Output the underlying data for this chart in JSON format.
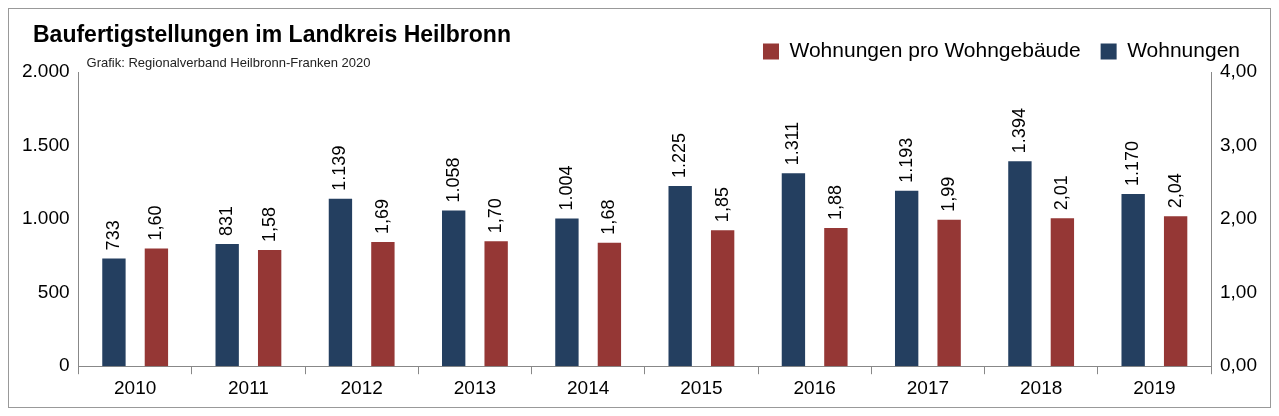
{
  "chart_data": {
    "type": "bar",
    "title": "Baufertigstellungen im Landkreis Heilbronn",
    "annotations": [
      "Grafik: Regionalverband Heilbronn-Franken 2020"
    ],
    "categories": [
      "2010",
      "2011",
      "2012",
      "2013",
      "2014",
      "2015",
      "2016",
      "2017",
      "2018",
      "2019"
    ],
    "series": [
      {
        "name": "Wohnungen",
        "color": "#243f60",
        "values": [
          733,
          831,
          1139,
          1058,
          1004,
          1225,
          1311,
          1193,
          1394,
          1170
        ],
        "value_labels": [
          "733",
          "831",
          "1.139",
          "1.058",
          "1.004",
          "1.225",
          "1.311",
          "1.193",
          "1.394",
          "1.170"
        ]
      },
      {
        "name": "Wohnungen pro Wohngebäude",
        "color": "#953735",
        "axis": "y2",
        "values": [
          1.6,
          1.58,
          1.69,
          1.7,
          1.68,
          1.85,
          1.88,
          1.99,
          2.01,
          2.04
        ],
        "value_labels": [
          "1,60",
          "1,58",
          "1,69",
          "1,70",
          "1,68",
          "1,85",
          "1,88",
          "1,99",
          "2,01",
          "2,04"
        ]
      }
    ],
    "ylim": [
      0,
      2000
    ],
    "yticks": [
      0,
      500,
      {
        "value": 1000,
        "label": "1.000"
      },
      {
        "value": 1500,
        "label": "1.500"
      },
      {
        "value": 2000,
        "label": "2.000"
      }
    ],
    "y2lim": [
      0,
      4
    ],
    "y2ticks": [
      {
        "value": 0,
        "label": "0,00"
      },
      {
        "value": 1,
        "label": "1,00"
      },
      {
        "value": 2,
        "label": "2,00"
      },
      {
        "value": 3,
        "label": "3,00"
      },
      {
        "value": 4,
        "label": "4,00"
      }
    ],
    "grid": false,
    "legend": "top right"
  }
}
